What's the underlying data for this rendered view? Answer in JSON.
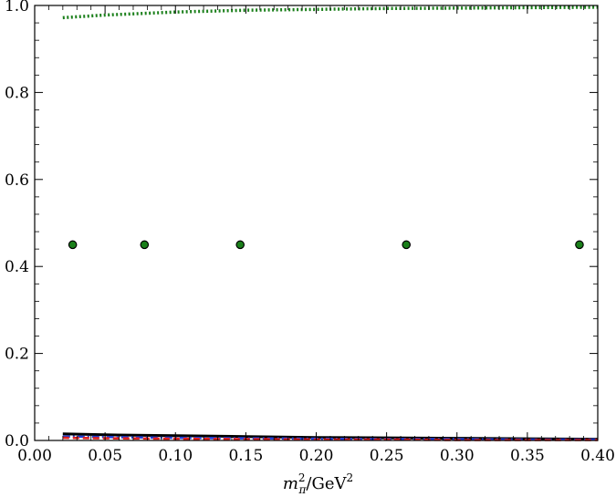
{
  "chart_data": {
    "type": "line",
    "title": "",
    "xlabel": "m_π²/GeV²",
    "xlabel_parts": {
      "m": "m",
      "sup": "2",
      "sub": "π",
      "unit": "/GeV",
      "unit_sup": "2"
    },
    "ylabel": "",
    "xlim": [
      0.0,
      0.4
    ],
    "ylim": [
      0.0,
      1.0
    ],
    "x_ticks": [
      "0.00",
      "0.05",
      "0.10",
      "0.15",
      "0.20",
      "0.25",
      "0.30",
      "0.35",
      "0.40"
    ],
    "y_ticks": [
      "0.0",
      "0.2",
      "0.4",
      "0.6",
      "0.8",
      "1.0"
    ],
    "grid": false,
    "series": [
      {
        "style": "dotted",
        "color": "#1a7f1a",
        "x": [
          0.02,
          0.05,
          0.1,
          0.15,
          0.2,
          0.25,
          0.3,
          0.35,
          0.4
        ],
        "y": [
          0.972,
          0.978,
          0.985,
          0.989,
          0.991,
          0.993,
          0.994,
          0.995,
          0.996
        ]
      },
      {
        "style": "solid",
        "color": "#000000",
        "x": [
          0.02,
          0.05,
          0.1,
          0.15,
          0.2,
          0.25,
          0.3,
          0.35,
          0.4
        ],
        "y": [
          0.015,
          0.013,
          0.011,
          0.009,
          0.007,
          0.006,
          0.005,
          0.004,
          0.003
        ]
      },
      {
        "style": "dashdot",
        "color": "#1f3fd6",
        "x": [
          0.02,
          0.05,
          0.1,
          0.15,
          0.2,
          0.25,
          0.3,
          0.35,
          0.4
        ],
        "y": [
          0.009,
          0.008,
          0.006,
          0.005,
          0.004,
          0.003,
          0.003,
          0.002,
          0.002
        ]
      },
      {
        "style": "dashed",
        "color": "#e02020",
        "x": [
          0.02,
          0.05,
          0.1,
          0.15,
          0.2,
          0.25,
          0.3,
          0.35,
          0.4
        ],
        "y": [
          0.006,
          0.005,
          0.004,
          0.003,
          0.002,
          0.002,
          0.001,
          0.001,
          0.001
        ]
      },
      {
        "style": "markers",
        "color": "#1a7f1a",
        "x": [
          0.027,
          0.078,
          0.146,
          0.264,
          0.387
        ],
        "y": [
          0.45,
          0.45,
          0.45,
          0.45,
          0.45
        ]
      }
    ]
  }
}
